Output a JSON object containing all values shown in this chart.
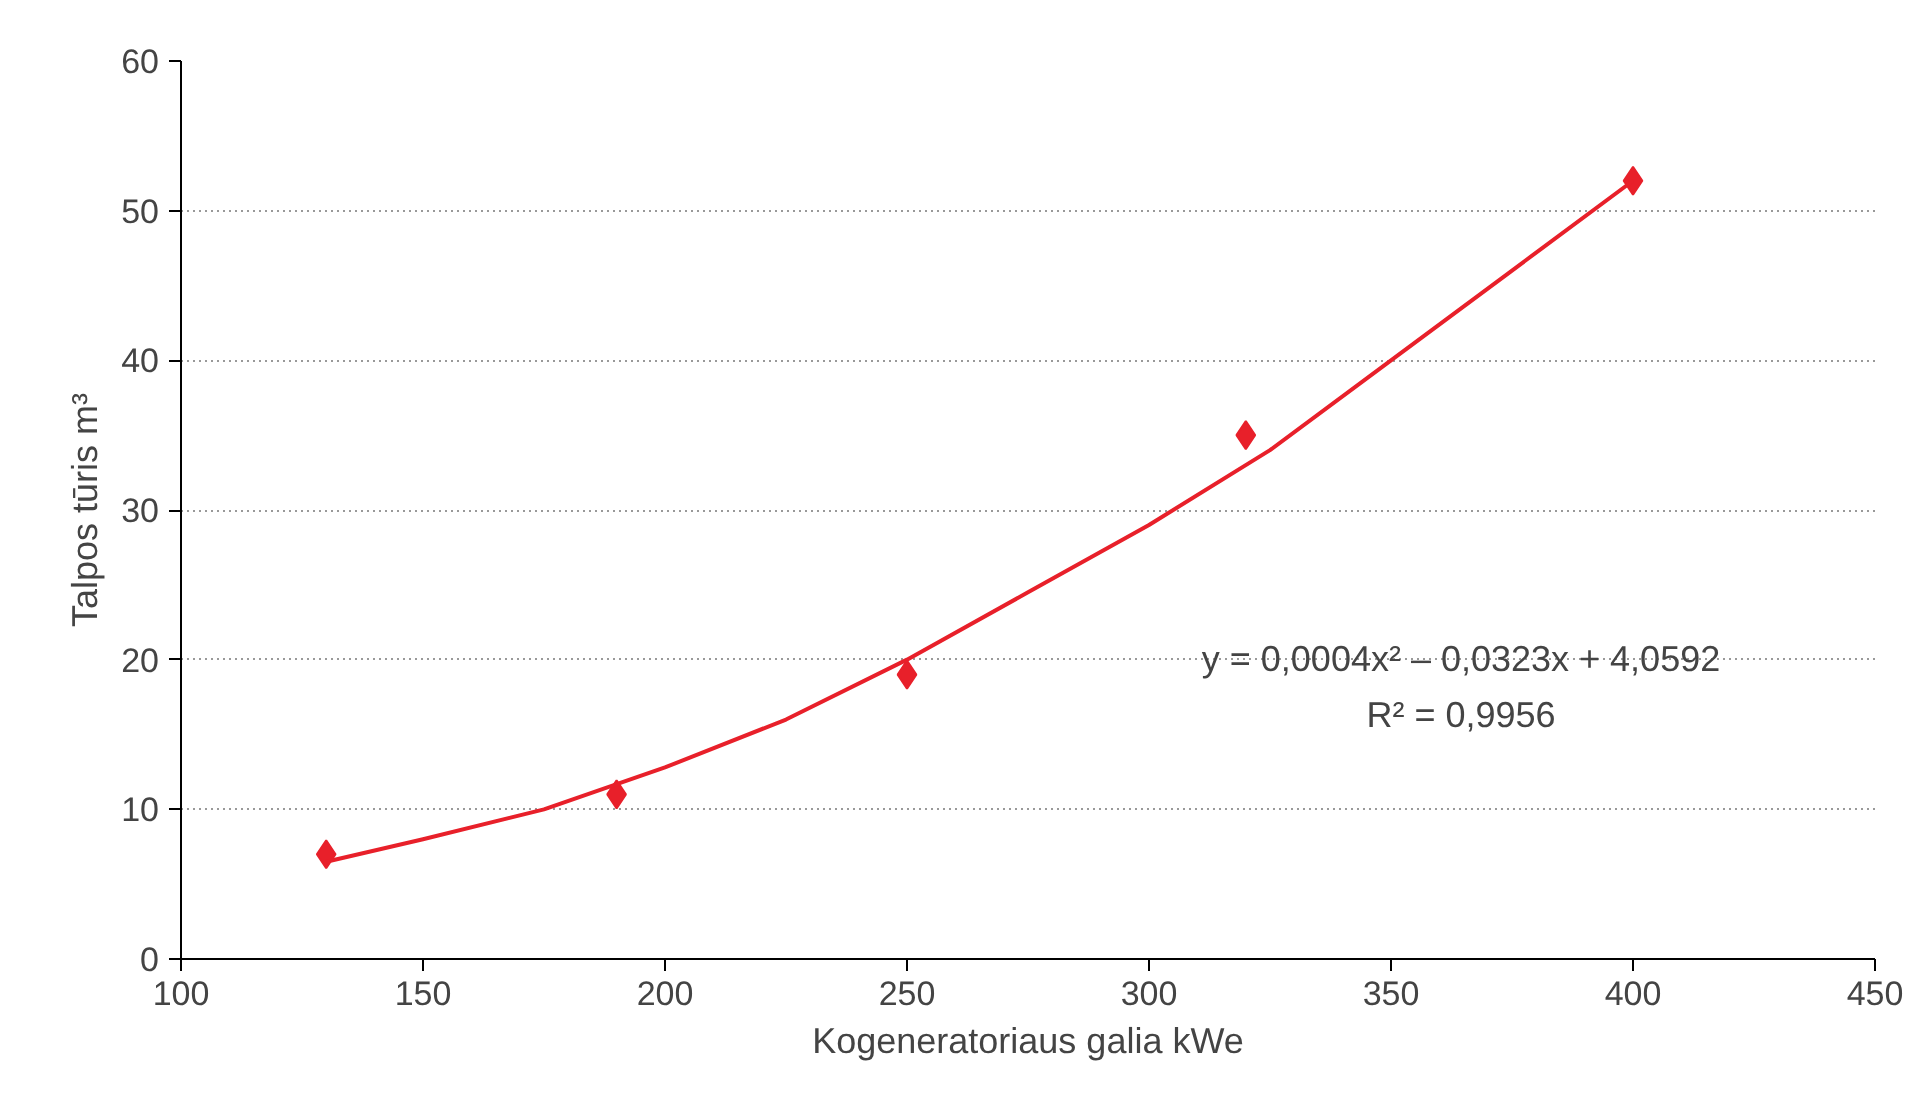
{
  "chart_data": {
    "type": "scatter",
    "xlabel": "Kogeneratoriaus galia kWe",
    "ylabel": "Talpos tūris m³",
    "xlim": [
      100,
      450
    ],
    "xticks": [
      100,
      150,
      200,
      250,
      300,
      350,
      400,
      450
    ],
    "ylim": [
      0,
      60
    ],
    "yticks": [
      0,
      10,
      20,
      30,
      40,
      50,
      60
    ],
    "grid": "y",
    "marker": "diamond",
    "annotations": [
      "y = 0,0004x² – 0,0323x + 4,0592",
      "R² = 0,9956"
    ],
    "series": [
      {
        "color": "#e8202a",
        "x": [
          130,
          190,
          250,
          320,
          400
        ],
        "values": [
          7,
          11,
          19,
          35,
          52
        ]
      },
      {
        "type": "line",
        "color": "#e8202a",
        "line_style": "solid",
        "marker": "none",
        "x": [
          130,
          150,
          175,
          200,
          225,
          250,
          275,
          300,
          325,
          350,
          375,
          400
        ],
        "values": [
          6.5,
          8,
          10,
          12.8,
          16,
          20,
          24.5,
          29,
          34,
          40,
          46,
          52
        ]
      }
    ]
  }
}
